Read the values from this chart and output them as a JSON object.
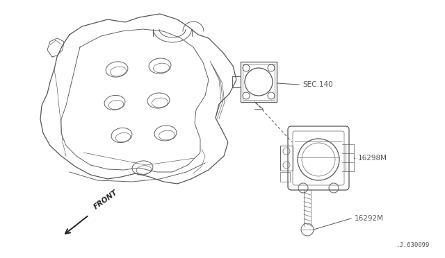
{
  "background_color": "#ffffff",
  "line_color": "#555555",
  "part_number_bottom": ".J.630099",
  "labels": {
    "SEC140": "SEC.140",
    "part1": "16298M",
    "part2": "16292M",
    "front": "FRONT"
  },
  "fig_width": 6.4,
  "fig_height": 3.72,
  "dpi": 100
}
